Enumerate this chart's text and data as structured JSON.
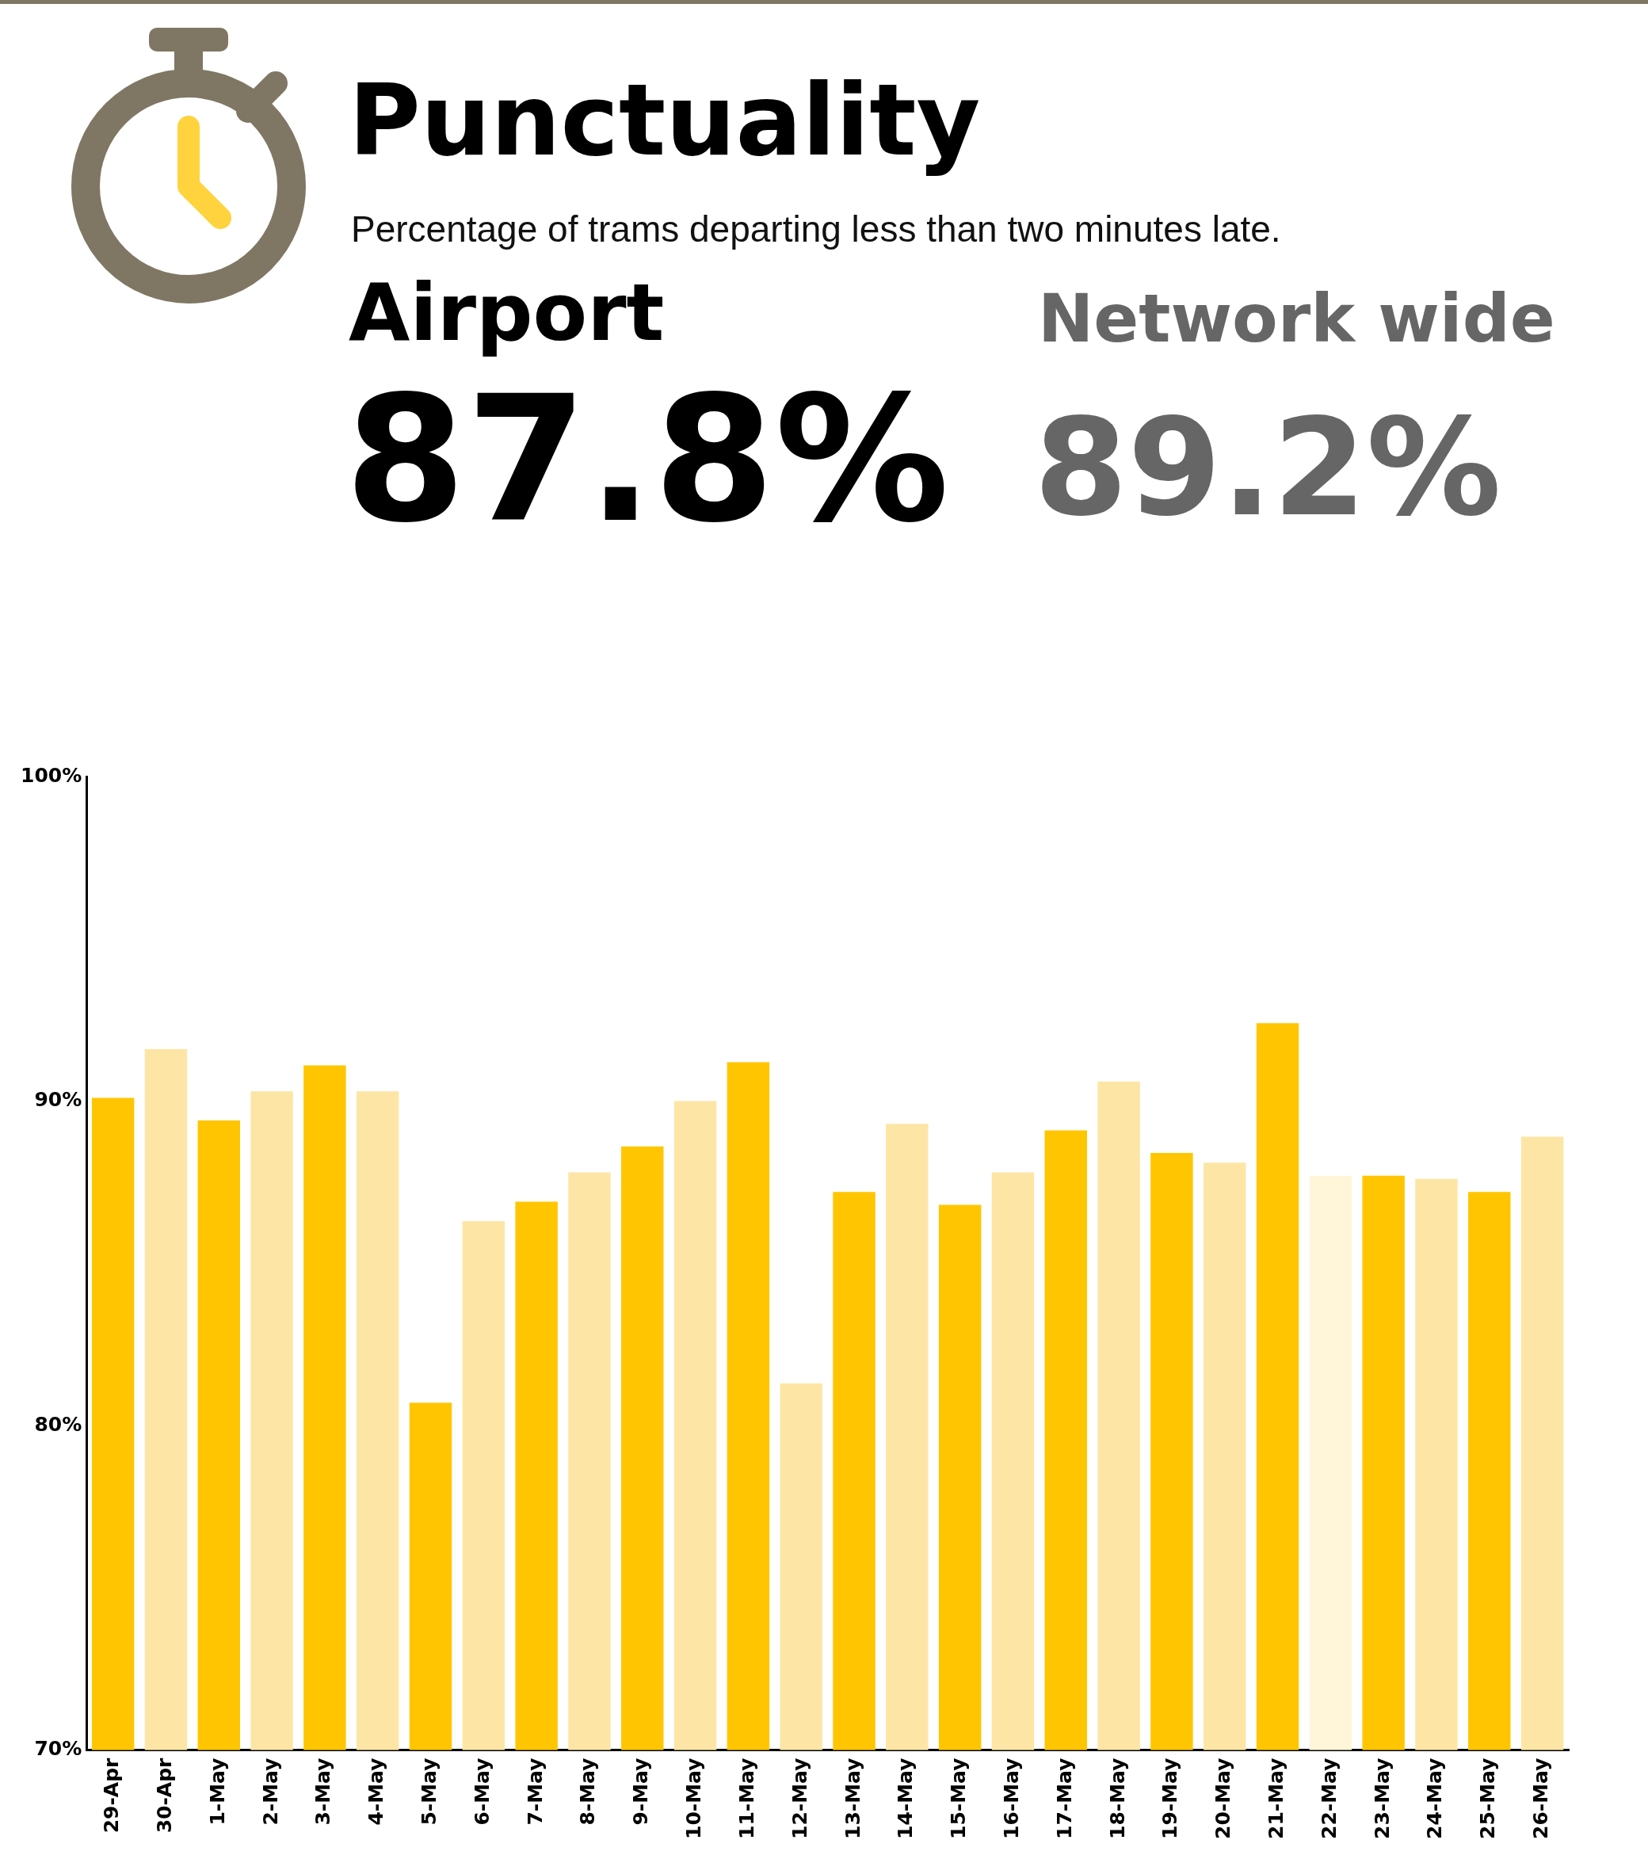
{
  "chart_data": {
    "type": "bar",
    "title": "Punctuality",
    "subtitle": "Percentage of trams departing less than two minutes late.",
    "annotations": [
      "Airport",
      "87.8%",
      "Network wide",
      "89.2%"
    ],
    "categories": [
      "29-Apr",
      "30-Apr",
      "1-May",
      "2-May",
      "3-May",
      "4-May",
      "5-May",
      "6-May",
      "7-May",
      "8-May",
      "9-May",
      "10-May",
      "11-May",
      "12-May",
      "13-May",
      "14-May",
      "15-May",
      "16-May",
      "17-May",
      "18-May",
      "19-May",
      "20-May",
      "21-May",
      "22-May",
      "23-May",
      "24-May",
      "25-May",
      "26-May"
    ],
    "values": [
      90.1,
      91.6,
      89.4,
      90.3,
      91.1,
      90.3,
      80.7,
      86.3,
      86.9,
      87.8,
      88.6,
      90.0,
      91.2,
      81.3,
      87.2,
      89.3,
      86.8,
      87.8,
      89.1,
      90.6,
      88.4,
      88.1,
      92.4,
      87.7,
      87.7,
      87.6,
      87.2,
      88.9
    ],
    "colors": [
      "#ffc600",
      "#fde6a5",
      "#ffc600",
      "#fde6a5",
      "#ffc600",
      "#fde6a5",
      "#ffc600",
      "#fde6a5",
      "#ffc600",
      "#fde6a5",
      "#ffc600",
      "#fde6a5",
      "#ffc600",
      "#fde6a5",
      "#ffc600",
      "#fde6a5",
      "#ffc600",
      "#fde6a5",
      "#ffc600",
      "#fde6a5",
      "#ffc600",
      "#fde6a5",
      "#ffc600",
      "#fff5d9",
      "#ffc600",
      "#fde6a5",
      "#ffc600",
      "#fde6a5"
    ],
    "ylim": [
      70,
      100
    ],
    "yticks": [
      {
        "value": 70,
        "label": "70%"
      },
      {
        "value": 80,
        "label": "80%"
      },
      {
        "value": 90,
        "label": "90%"
      },
      {
        "value": 100,
        "label": "100%"
      }
    ],
    "grid": false,
    "legend": false
  }
}
